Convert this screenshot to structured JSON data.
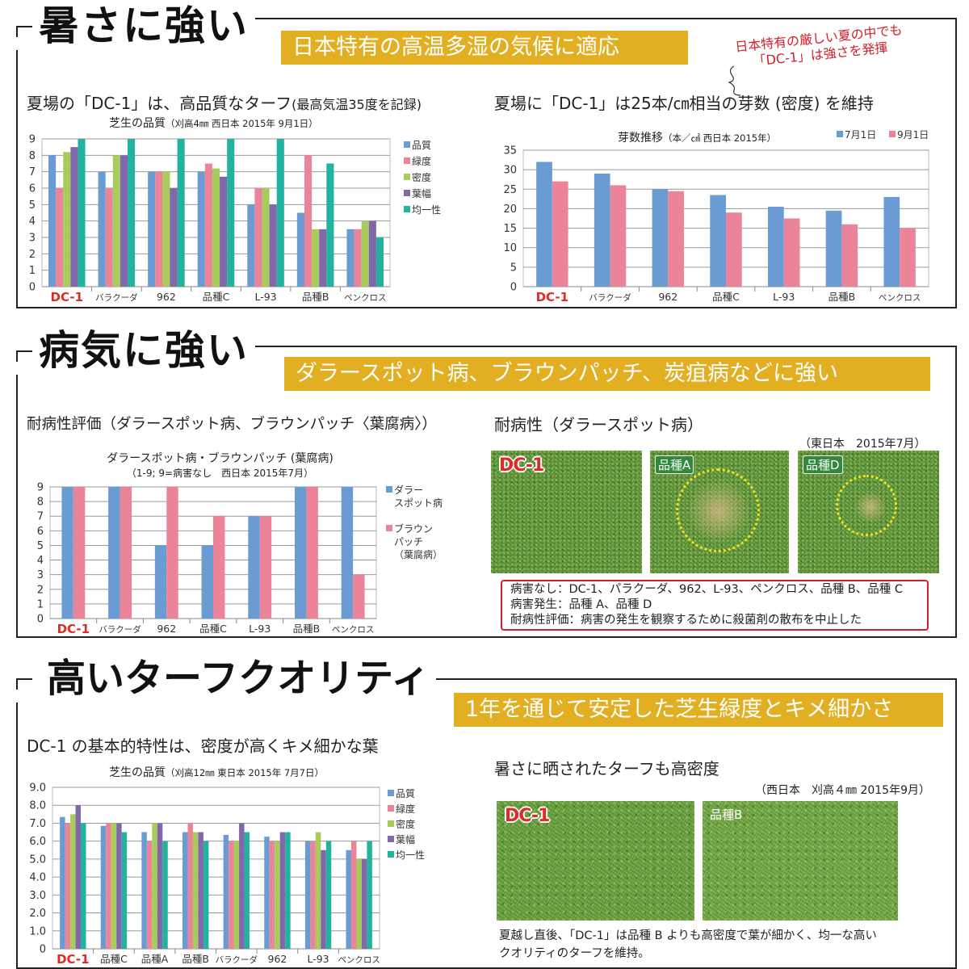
{
  "colors": {
    "blue": "#6b9bd3",
    "pink": "#ec8499",
    "green": "#a7cc5d",
    "purple": "#8367ab",
    "teal": "#24b2a0",
    "banner": "#e2ae22",
    "dc1_red": "#e02a26"
  },
  "section1": {
    "title": "暑さに強い",
    "banner": "日本特有の高温多湿の気候に適応",
    "annotation": [
      "日本特有の厳しい夏の中でも",
      "「DC-1」は強さを発揮"
    ],
    "left_heading": "夏場の「DC-1」は、高品質なターフ",
    "left_heading_small": "(最高気温35度を記録)",
    "right_heading": "夏場に「DC-1」は25本/㎝相当の芽数 (密度) を維持"
  },
  "section2": {
    "title": "病気に強い",
    "banner": "ダラースポット病、ブラウンパッチ、炭疽病などに強い",
    "left_heading": "耐病性評価（ダラースポット病、ブラウンパッチ〈葉腐病〉）",
    "right_heading": "耐病性（ダラースポット病）",
    "photo_note": "（東日本　2015年7月）",
    "photos": [
      "DC-1",
      "品種A",
      "品種D"
    ],
    "notes": [
      "病害なし：DC-1、パラクーダ、962、L-93、ペンクロス、品種 B、品種 C",
      "病害発生：品種 A、品種 D",
      "耐病性評価：病害の発生を観察するために殺菌剤の散布を中止した"
    ]
  },
  "section3": {
    "title": "高いターフクオリティ",
    "banner": "1年を通じて安定した芝生緑度とキメ細かさ",
    "left_heading": "DC-1 の基本的特性は、密度が高くキメ細かな葉",
    "right_heading": "暑さに晒されたターフも高密度",
    "photo_note": "（西日本　刈高４㎜ 2015年9月）",
    "photos": [
      "DC-1",
      "品種B"
    ],
    "caption": [
      "夏越し直後、「DC-1」は品種 B よりも高密度で葉が細かく、均一な高い",
      "クオリティのターフを維持。"
    ]
  },
  "chart_data": [
    {
      "type": "bar",
      "title": "芝生の品質",
      "subtitle": "（刈高4㎜ 西日本 2015年 9月1日）",
      "categories": [
        "DC-1",
        "バラクーダ",
        "962",
        "品種C",
        "L-93",
        "品種B",
        "ペンクロス"
      ],
      "series": [
        {
          "name": "品質",
          "color": "#6b9bd3",
          "values": [
            8,
            7,
            7,
            7,
            5,
            4.5,
            3.5
          ]
        },
        {
          "name": "緑度",
          "color": "#ec8499",
          "values": [
            6,
            6,
            7,
            7.5,
            6,
            8,
            3.5
          ]
        },
        {
          "name": "密度",
          "color": "#a7cc5d",
          "values": [
            8.2,
            8,
            7,
            7.2,
            6,
            3.5,
            4
          ]
        },
        {
          "name": "葉幅",
          "color": "#8367ab",
          "values": [
            8.5,
            8,
            6,
            6.7,
            5,
            3.5,
            4
          ]
        },
        {
          "name": "均一性",
          "color": "#24b2a0",
          "values": [
            9,
            9,
            9,
            9,
            9,
            7.5,
            3
          ]
        }
      ],
      "ylim": [
        0,
        9
      ],
      "yticks": [
        "0",
        "1",
        "2",
        "3",
        "4",
        "5",
        "6",
        "7",
        "8",
        "9"
      ],
      "grid": true,
      "legend": "right"
    },
    {
      "type": "bar",
      "title": "芽数推移",
      "subtitle": "（本／㎠ 西日本 2015年）",
      "categories": [
        "DC-1",
        "バラクーダ",
        "962",
        "品種C",
        "L-93",
        "品種B",
        "ペンクロス"
      ],
      "series": [
        {
          "name": "7月1日",
          "color": "#6b9bd3",
          "values": [
            32,
            29,
            25,
            23.5,
            20.5,
            19.5,
            23
          ]
        },
        {
          "name": "9月1日",
          "color": "#ec8499",
          "values": [
            27,
            26,
            24.5,
            19,
            17.5,
            16,
            15
          ]
        }
      ],
      "ylim": [
        0,
        35
      ],
      "yticks": [
        "0",
        "5",
        "10",
        "15",
        "20",
        "25",
        "30",
        "35"
      ],
      "grid": true,
      "legend": "top-right"
    },
    {
      "type": "bar",
      "title": "ダラースポット病・ブラウンパッチ (葉腐病)",
      "subtitle": "（1-9; 9=病害なし　西日本  2015年7月）",
      "categories": [
        "DC-1",
        "バラクーダ",
        "962",
        "品種C",
        "L-93",
        "品種B",
        "ペンクロス"
      ],
      "series": [
        {
          "name": "ダラー\nスポット病",
          "color": "#6b9bd3",
          "values": [
            9,
            9,
            5,
            5,
            7,
            9,
            9
          ]
        },
        {
          "name": "ブラウン\nパッチ\n（葉腐病）",
          "color": "#ec8499",
          "values": [
            9,
            9,
            9,
            7,
            7,
            9,
            3
          ]
        }
      ],
      "ylim": [
        0,
        9
      ],
      "yticks": [
        "0",
        "1",
        "2",
        "3",
        "4",
        "5",
        "6",
        "7",
        "8",
        "9"
      ],
      "grid": true,
      "legend": "right"
    },
    {
      "type": "bar",
      "title": "芝生の品質",
      "subtitle": "（刈高12㎜ 東日本 2015年 7月7日）",
      "categories": [
        "DC-1",
        "品種C",
        "品種A",
        "品種B",
        "バラクーダ",
        "962",
        "L-93",
        "ペンクロス"
      ],
      "series": [
        {
          "name": "品質",
          "color": "#6b9bd3",
          "values": [
            7.35,
            6.85,
            6.5,
            6.5,
            6.35,
            6.25,
            6,
            5.5
          ]
        },
        {
          "name": "緑度",
          "color": "#ec8499",
          "values": [
            7,
            7,
            6,
            7,
            6,
            6,
            6,
            6
          ]
        },
        {
          "name": "密度",
          "color": "#a7cc5d",
          "values": [
            7.5,
            7,
            7,
            6.5,
            6,
            6,
            6.5,
            5
          ]
        },
        {
          "name": "葉幅",
          "color": "#8367ab",
          "values": [
            8,
            7,
            7,
            6.5,
            7,
            6.5,
            5.5,
            5
          ]
        },
        {
          "name": "均一性",
          "color": "#24b2a0",
          "values": [
            7,
            6.5,
            6,
            6,
            6.5,
            6.5,
            6,
            6
          ]
        }
      ],
      "ylim": [
        0,
        9
      ],
      "yticks": [
        "0",
        "1.0",
        "2.0",
        "3.0",
        "4.0",
        "5.0",
        "6.0",
        "7.0",
        "8.0",
        "9.0"
      ],
      "grid": true,
      "legend": "right"
    }
  ]
}
